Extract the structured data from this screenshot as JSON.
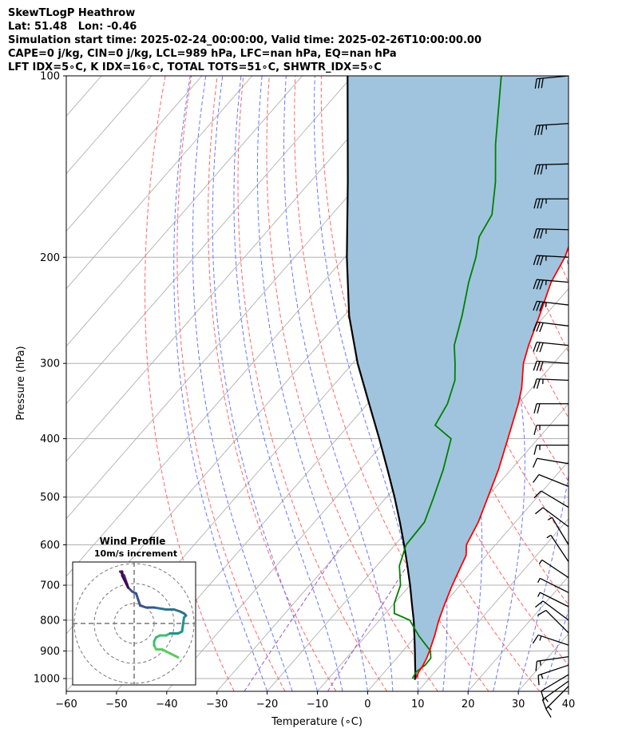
{
  "header": {
    "line1": "SkewTLogP Heathrow",
    "line2": "Lat: 51.48   Lon: -0.46",
    "line3": "Simulation start time: 2025-02-24_00:00:00, Valid time: 2025-02-26T10:00:00.00",
    "line4": "CAPE=0 j/kg, CIN=0 j/kg, LCL=989 hPa, LFC=nan hPa, EQ=nan hPa",
    "line5": "LFT IDX=5∘C, K IDX=16∘C, TOTAL TOTS=51∘C, SHWTR_IDX=5∘C"
  },
  "chart_data": [
    {
      "type": "line",
      "xlabel": "Temperature (∘C)",
      "ylabel": "Pressure (hPa)",
      "xlim": [
        -60,
        40
      ],
      "ylim": [
        1050,
        100
      ],
      "y_scale": "log",
      "x_ticks": [
        "−60",
        "−50",
        "−40",
        "−30",
        "−20",
        "−10",
        "0",
        "10",
        "20",
        "30",
        "40"
      ],
      "y_ticks": [
        "100",
        "200",
        "300",
        "400",
        "500",
        "600",
        "700",
        "800",
        "900",
        "1000"
      ],
      "grid": true,
      "colors": {
        "temperature": "#ff0000",
        "dewpoint": "#008000",
        "parcel": "#000000",
        "shade": "#a0c4de",
        "dry_adiabats": "#ff6666",
        "moist_adiabats": "#6677ff",
        "mixing_ratio": "#9955cc",
        "isotherms": "#aaaaaa"
      },
      "series": [
        {
          "key": "temperature",
          "pressure": [
            1000,
            975,
            950,
            925,
            900,
            850,
            800,
            750,
            700,
            650,
            625,
            600,
            550,
            500,
            450,
            400,
            350,
            330,
            300,
            280,
            250,
            220,
            200,
            180,
            160,
            140,
            120,
            110,
            100
          ],
          "values": [
            7.4,
            6.8,
            6.5,
            6.0,
            5.3,
            3.7,
            1.8,
            0.1,
            -1.6,
            -3.2,
            -4.0,
            -5.8,
            -7.4,
            -9.8,
            -12.5,
            -16.0,
            -20.0,
            -22.0,
            -26.0,
            -28.1,
            -31.1,
            -34.6,
            -36.2,
            -39.0,
            -43.1,
            -47.8,
            -52.5,
            -54.9,
            -57.2
          ]
        },
        {
          "key": "dewpoint",
          "pressure": [
            1000,
            975,
            950,
            925,
            900,
            850,
            800,
            780,
            750,
            700,
            650,
            600,
            550,
            500,
            450,
            400,
            380,
            350,
            320,
            300,
            280,
            250,
            220,
            200,
            185,
            170,
            150,
            130,
            100
          ],
          "values": [
            6.7,
            6.3,
            6.9,
            6.8,
            5.5,
            0.6,
            -4.0,
            -8.2,
            -10.0,
            -11.9,
            -15.5,
            -17.8,
            -18.1,
            -20.6,
            -23.5,
            -27.3,
            -32.8,
            -34.1,
            -36.7,
            -39.6,
            -42.9,
            -46.5,
            -51.0,
            -53.9,
            -56.8,
            -58.1,
            -63.1,
            -69.6,
            -80.4
          ]
        },
        {
          "key": "parcel",
          "pressure": [
            1005,
            989,
            950,
            900,
            850,
            800,
            750,
            700,
            650,
            600,
            550,
            500,
            450,
            400,
            350,
            300,
            250,
            200,
            150,
            100
          ],
          "values": [
            7.4,
            6.8,
            4.9,
            2.4,
            -0.3,
            -3.2,
            -6.5,
            -10.0,
            -13.9,
            -18.2,
            -23.0,
            -28.4,
            -34.6,
            -41.6,
            -49.7,
            -59.0,
            -69.0,
            -79.6,
            -92.5,
            -111.0
          ]
        }
      ],
      "wind_barbs": {
        "pressure": [
          1030,
          1010,
          985,
          950,
          920,
          880,
          840,
          800,
          760,
          720,
          680,
          640,
          600,
          560,
          520,
          480,
          440,
          410,
          380,
          350,
          320,
          300,
          280,
          260,
          240,
          220,
          200,
          180,
          160,
          140,
          120,
          100
        ],
        "u_kt": [
          -12,
          -14,
          -10,
          -12,
          -14,
          -12,
          -8,
          -8,
          -6,
          -4,
          -3,
          -2,
          -3,
          -8,
          -10,
          -10,
          -12,
          -14,
          -16,
          -20,
          -24,
          -28,
          -30,
          -32,
          -34,
          -36,
          -36,
          -36,
          -35,
          -34,
          -33,
          -32
        ],
        "v_kt": [
          -12,
          -10,
          -6,
          -4,
          -2,
          4,
          8,
          6,
          3,
          2,
          2,
          3,
          5,
          6,
          6,
          4,
          2,
          0,
          0,
          0,
          1,
          2,
          3,
          4,
          4,
          3,
          2,
          1,
          0,
          -1,
          -2,
          -3
        ]
      }
    },
    {
      "type": "line",
      "title": "Wind Profile",
      "subtitle": "10m/s increment",
      "rings_ms": [
        10,
        20,
        30
      ],
      "grid": true,
      "legend": "none",
      "u_ms": [
        22,
        20,
        18,
        14,
        11,
        10,
        10,
        11,
        13,
        16,
        18,
        20,
        22,
        24,
        25,
        26,
        25,
        23,
        20,
        16,
        10,
        6,
        3,
        1,
        -1,
        -3,
        -4,
        -5,
        -6,
        -7,
        -6,
        -6,
        -5,
        -4,
        -3
      ],
      "v_ms": [
        -17,
        -16,
        -15,
        -13,
        -13,
        -11,
        -9,
        -7,
        -6,
        -6,
        -5,
        -5,
        -5,
        -4,
        3,
        4,
        5,
        6,
        7,
        7,
        8,
        8,
        9,
        15,
        16,
        18,
        21,
        24,
        25,
        26,
        26,
        24,
        22,
        20,
        18
      ]
    }
  ]
}
